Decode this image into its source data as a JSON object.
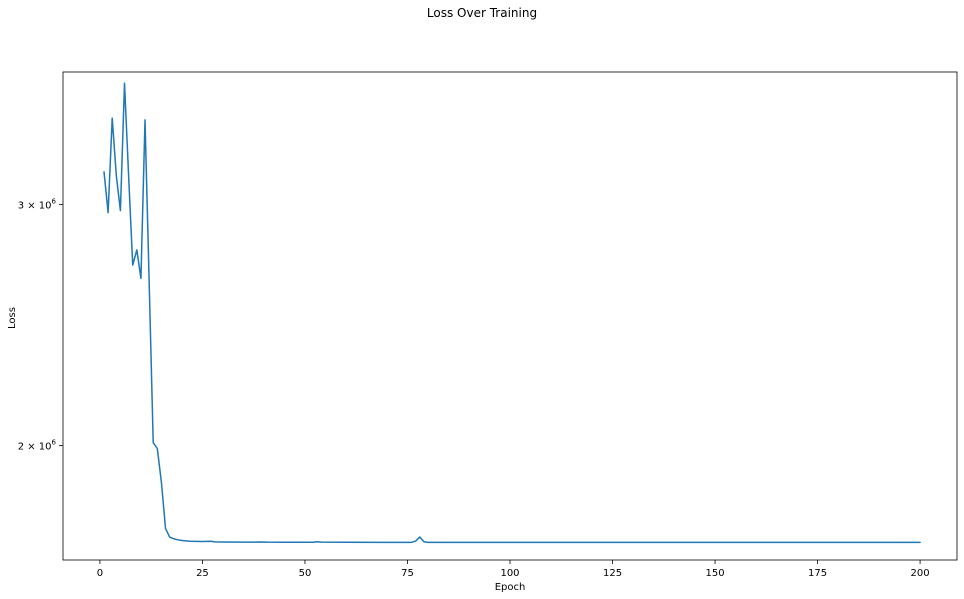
{
  "figure_title": "Loss Over Training",
  "chart_data": {
    "type": "line",
    "title": "Loss Over Training",
    "xlabel": "Epoch",
    "ylabel": "Loss",
    "xlim": [
      -9,
      209
    ],
    "ylim": [
      1650000,
      3750000
    ],
    "yscale": "log",
    "grid": false,
    "line_color": "#1f77b4",
    "xticks": [
      0,
      25,
      50,
      75,
      100,
      125,
      150,
      175,
      200
    ],
    "xtick_labels": [
      "0",
      "25",
      "50",
      "75",
      "100",
      "125",
      "150",
      "175",
      "200"
    ],
    "yticks": [
      2000000,
      3000000
    ],
    "ytick_labels": [
      {
        "mantissa": "2",
        "base": "10",
        "exp": "6"
      },
      {
        "mantissa": "3",
        "base": "10",
        "exp": "6"
      }
    ],
    "series": [
      {
        "points": [
          [
            1,
            3170000
          ],
          [
            2,
            2960000
          ],
          [
            3,
            3470000
          ],
          [
            4,
            3150000
          ],
          [
            5,
            2970000
          ],
          [
            6,
            3680000
          ],
          [
            7,
            3150000
          ],
          [
            8,
            2710000
          ],
          [
            9,
            2780000
          ],
          [
            10,
            2650000
          ],
          [
            11,
            3460000
          ],
          [
            12,
            2640000
          ],
          [
            13,
            2010000
          ],
          [
            14,
            1990000
          ],
          [
            15,
            1880000
          ],
          [
            16,
            1740000
          ],
          [
            17,
            1715000
          ],
          [
            18,
            1710000
          ],
          [
            19,
            1707000
          ],
          [
            20,
            1705000
          ],
          [
            22,
            1703000
          ],
          [
            25,
            1702000
          ],
          [
            27,
            1703000
          ],
          [
            28,
            1701000
          ],
          [
            30,
            1700800
          ],
          [
            35,
            1700500
          ],
          [
            38,
            1700400
          ],
          [
            39,
            1700900
          ],
          [
            41,
            1700300
          ],
          [
            45,
            1700200
          ],
          [
            52,
            1700100
          ],
          [
            53,
            1701600
          ],
          [
            54,
            1700300
          ],
          [
            60,
            1700000
          ],
          [
            70,
            1699800
          ],
          [
            75,
            1699700
          ],
          [
            76,
            1699800
          ],
          [
            77,
            1703500
          ],
          [
            78,
            1715000
          ],
          [
            79,
            1701500
          ],
          [
            80,
            1699800
          ],
          [
            85,
            1699600
          ],
          [
            90,
            1699500
          ],
          [
            100,
            1699500
          ],
          [
            125,
            1699500
          ],
          [
            150,
            1699500
          ],
          [
            175,
            1699500
          ],
          [
            200,
            1699500
          ]
        ]
      }
    ]
  }
}
